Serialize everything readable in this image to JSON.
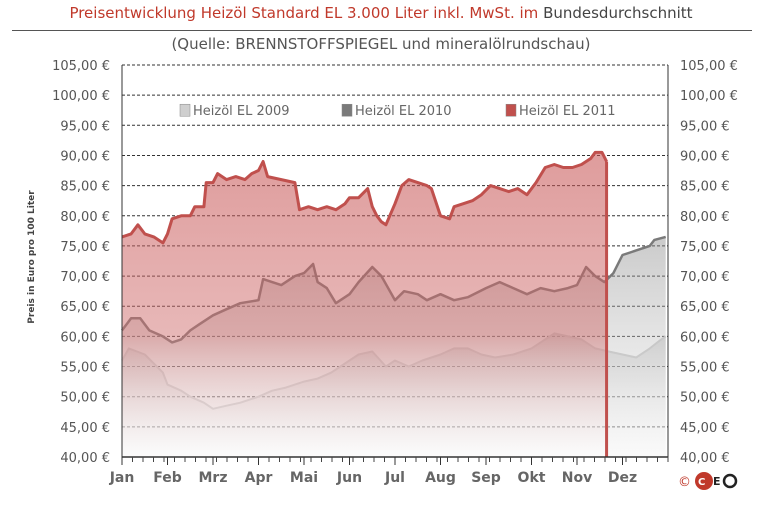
{
  "chart_data": {
    "type": "area",
    "title_part1": "Preisentwicklung Heizöl Standard EL 3.000 Liter inkl. MwSt. im",
    "title_part2": "Bundesdurchschnitt",
    "subtitle": "(Quelle: BRENNSTOFFSPIEGEL  und mineralölrundschau)",
    "ylabel": "Preis in Euro pro 100 Liter",
    "xlabel": "",
    "ylim": [
      40,
      105
    ],
    "yticks": [
      "40,00 €",
      "45,00 €",
      "50,00 €",
      "55,00 €",
      "60,00 €",
      "65,00 €",
      "70,00 €",
      "75,00 €",
      "80,00 €",
      "85,00 €",
      "90,00 €",
      "95,00 €",
      "100,00 €",
      "105,00 €"
    ],
    "categories": [
      "Jan",
      "Feb",
      "Mrz",
      "Apr",
      "Mai",
      "Jun",
      "Jul",
      "Aug",
      "Sep",
      "Okt",
      "Nov",
      "Dez"
    ],
    "grid": true,
    "legend_position": "top",
    "series": [
      {
        "name": "Heizöl EL 2009",
        "color": "#cfcfcf",
        "points": [
          [
            0,
            56
          ],
          [
            0.15,
            58
          ],
          [
            0.5,
            57
          ],
          [
            0.9,
            54
          ],
          [
            1.0,
            52
          ],
          [
            1.3,
            51
          ],
          [
            1.5,
            50
          ],
          [
            1.8,
            49
          ],
          [
            2.0,
            48
          ],
          [
            2.3,
            48.5
          ],
          [
            2.6,
            49
          ],
          [
            3.0,
            50
          ],
          [
            3.3,
            51
          ],
          [
            3.6,
            51.5
          ],
          [
            4.0,
            52.5
          ],
          [
            4.3,
            53
          ],
          [
            4.6,
            54
          ],
          [
            5.0,
            56
          ],
          [
            5.2,
            57
          ],
          [
            5.5,
            57.5
          ],
          [
            5.8,
            55
          ],
          [
            6.0,
            56
          ],
          [
            6.3,
            55
          ],
          [
            6.6,
            56
          ],
          [
            7.0,
            57
          ],
          [
            7.3,
            58
          ],
          [
            7.6,
            58
          ],
          [
            7.9,
            57
          ],
          [
            8.2,
            56.5
          ],
          [
            8.6,
            57
          ],
          [
            9.0,
            58
          ],
          [
            9.2,
            59
          ],
          [
            9.5,
            60.5
          ],
          [
            9.8,
            60
          ],
          [
            10.1,
            59.5
          ],
          [
            10.4,
            58
          ],
          [
            10.7,
            57.5
          ],
          [
            11.0,
            57
          ],
          [
            11.3,
            56.5
          ],
          [
            11.6,
            58
          ],
          [
            11.85,
            59.5
          ],
          [
            11.95,
            60
          ]
        ]
      },
      {
        "name": "Heizöl EL 2010",
        "color": "#7a7a7a",
        "points": [
          [
            0,
            61
          ],
          [
            0.2,
            63
          ],
          [
            0.4,
            63
          ],
          [
            0.6,
            61
          ],
          [
            0.9,
            60
          ],
          [
            1.1,
            59
          ],
          [
            1.3,
            59.5
          ],
          [
            1.5,
            61
          ],
          [
            1.7,
            62
          ],
          [
            2.0,
            63.5
          ],
          [
            2.3,
            64.5
          ],
          [
            2.6,
            65.5
          ],
          [
            3.0,
            66
          ],
          [
            3.1,
            69.5
          ],
          [
            3.3,
            69
          ],
          [
            3.5,
            68.5
          ],
          [
            3.8,
            70
          ],
          [
            4.0,
            70.5
          ],
          [
            4.2,
            72
          ],
          [
            4.3,
            69
          ],
          [
            4.5,
            68
          ],
          [
            4.7,
            65.5
          ],
          [
            5.0,
            67
          ],
          [
            5.2,
            69
          ],
          [
            5.5,
            71.5
          ],
          [
            5.7,
            70
          ],
          [
            6.0,
            66
          ],
          [
            6.2,
            67.5
          ],
          [
            6.5,
            67
          ],
          [
            6.7,
            66
          ],
          [
            7.0,
            67
          ],
          [
            7.3,
            66
          ],
          [
            7.6,
            66.5
          ],
          [
            8.0,
            68
          ],
          [
            8.3,
            69
          ],
          [
            8.6,
            68
          ],
          [
            8.9,
            67
          ],
          [
            9.2,
            68
          ],
          [
            9.5,
            67.5
          ],
          [
            9.8,
            68
          ],
          [
            10.0,
            68.5
          ],
          [
            10.2,
            71.5
          ],
          [
            10.4,
            70
          ],
          [
            10.6,
            69
          ],
          [
            10.8,
            70.5
          ],
          [
            11.0,
            73.5
          ],
          [
            11.2,
            74
          ],
          [
            11.4,
            74.5
          ],
          [
            11.6,
            75
          ],
          [
            11.7,
            76
          ],
          [
            11.95,
            76.5
          ]
        ]
      },
      {
        "name": "Heizöl EL 2011",
        "color": "#c0504d",
        "points": [
          [
            0,
            76.5
          ],
          [
            0.2,
            77
          ],
          [
            0.35,
            78.5
          ],
          [
            0.5,
            77
          ],
          [
            0.7,
            76.5
          ],
          [
            0.9,
            75.5
          ],
          [
            1.0,
            77
          ],
          [
            1.1,
            79.5
          ],
          [
            1.3,
            80
          ],
          [
            1.5,
            80
          ],
          [
            1.6,
            81.5
          ],
          [
            1.8,
            81.5
          ],
          [
            1.85,
            85.5
          ],
          [
            2.0,
            85.5
          ],
          [
            2.1,
            87
          ],
          [
            2.3,
            86
          ],
          [
            2.5,
            86.5
          ],
          [
            2.7,
            86
          ],
          [
            2.85,
            87
          ],
          [
            3.0,
            87.5
          ],
          [
            3.1,
            89
          ],
          [
            3.2,
            86.5
          ],
          [
            3.5,
            86
          ],
          [
            3.8,
            85.5
          ],
          [
            3.9,
            81
          ],
          [
            4.1,
            81.5
          ],
          [
            4.3,
            81
          ],
          [
            4.5,
            81.5
          ],
          [
            4.7,
            81
          ],
          [
            4.9,
            82
          ],
          [
            5.0,
            83
          ],
          [
            5.2,
            83
          ],
          [
            5.4,
            84.5
          ],
          [
            5.5,
            81.5
          ],
          [
            5.6,
            80
          ],
          [
            5.7,
            79
          ],
          [
            5.8,
            78.5
          ],
          [
            6.0,
            82
          ],
          [
            6.15,
            85
          ],
          [
            6.3,
            86
          ],
          [
            6.5,
            85.5
          ],
          [
            6.7,
            85
          ],
          [
            6.8,
            84.5
          ],
          [
            7.0,
            80
          ],
          [
            7.2,
            79.5
          ],
          [
            7.3,
            81.5
          ],
          [
            7.5,
            82
          ],
          [
            7.7,
            82.5
          ],
          [
            7.9,
            83.5
          ],
          [
            8.1,
            85
          ],
          [
            8.3,
            84.5
          ],
          [
            8.5,
            84
          ],
          [
            8.7,
            84.5
          ],
          [
            8.9,
            83.5
          ],
          [
            9.1,
            85.5
          ],
          [
            9.3,
            88
          ],
          [
            9.5,
            88.5
          ],
          [
            9.7,
            88
          ],
          [
            9.9,
            88
          ],
          [
            10.1,
            88.5
          ],
          [
            10.3,
            89.5
          ],
          [
            10.4,
            90.5
          ],
          [
            10.55,
            90.5
          ],
          [
            10.65,
            89
          ]
        ]
      }
    ]
  },
  "logo_text": "©CEO"
}
